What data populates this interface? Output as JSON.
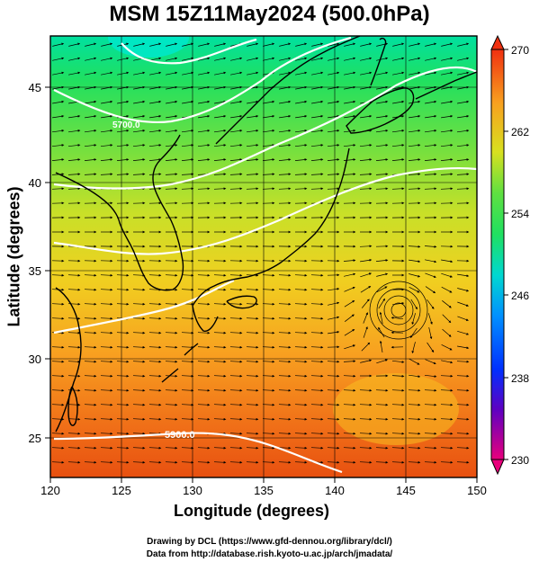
{
  "title": "MSM 15Z11May2024 (500.0hPa)",
  "axes": {
    "xlabel": "Longitude (degrees)",
    "ylabel": "Latitude  (degrees)",
    "xticks": [
      "120",
      "125",
      "130",
      "135",
      "140",
      "145",
      "150"
    ],
    "yticks": [
      "25",
      "30",
      "35",
      "40",
      "45"
    ]
  },
  "colorbar": {
    "ticks": [
      "270",
      "262",
      "254",
      "246",
      "238",
      "230"
    ],
    "min": 230,
    "max": 270,
    "colors": [
      "#e8007c",
      "#4000c0",
      "#0044ff",
      "#00c8ff",
      "#00e090",
      "#40e040",
      "#c8e028",
      "#f8d020",
      "#f89a20",
      "#f04010"
    ]
  },
  "contours": {
    "labels": [
      "5700.0",
      "5900.0"
    ]
  },
  "credits": {
    "line1": "Drawing by DCL (https://www.gfd-dennou.org/library/dcl/)",
    "line2": "Data from http://database.rish.kyoto-u.ac.jp/arch/jmadata/"
  },
  "map": {
    "lon_range": [
      120,
      150
    ],
    "lat_range": [
      22.5,
      47.5
    ]
  }
}
